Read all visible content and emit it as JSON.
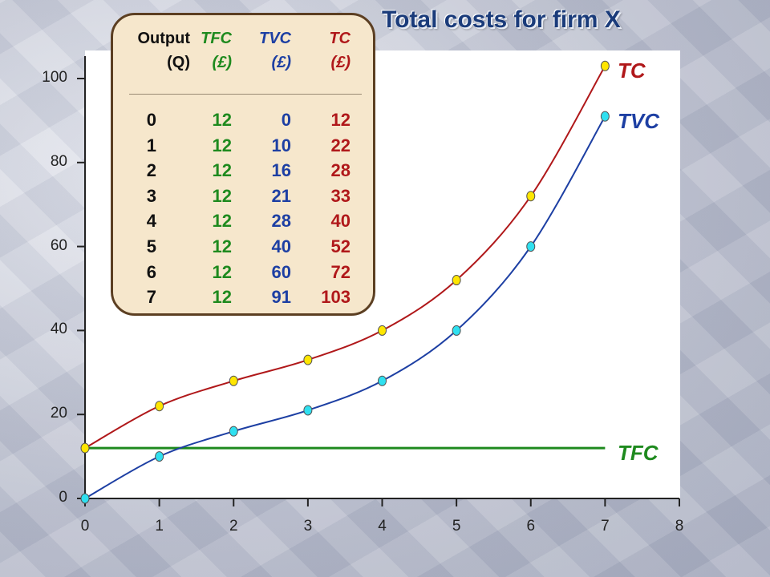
{
  "title": "Total costs for firm X",
  "colors": {
    "tc": "#b0181a",
    "tvc": "#1d3fa3",
    "tfc": "#1e8a1e",
    "tc_marker": "#ffe600",
    "tvc_marker": "#2fe0f0"
  },
  "table": {
    "headers": [
      {
        "line1": "Output",
        "line2": "(Q)"
      },
      {
        "line1": "TFC",
        "line2": "(£)"
      },
      {
        "line1": "TVC",
        "line2": "(£)"
      },
      {
        "line1": "TC",
        "line2": "(£)"
      }
    ],
    "rows": [
      [
        "0",
        "12",
        "0",
        "12"
      ],
      [
        "1",
        "12",
        "10",
        "22"
      ],
      [
        "2",
        "12",
        "16",
        "28"
      ],
      [
        "3",
        "12",
        "21",
        "33"
      ],
      [
        "4",
        "12",
        "28",
        "40"
      ],
      [
        "5",
        "12",
        "40",
        "52"
      ],
      [
        "6",
        "12",
        "60",
        "72"
      ],
      [
        "7",
        "12",
        "91",
        "103"
      ]
    ]
  },
  "chart_data": {
    "type": "line",
    "x": [
      0,
      1,
      2,
      3,
      4,
      5,
      6,
      7
    ],
    "series": [
      {
        "name": "TC",
        "values": [
          12,
          22,
          28,
          33,
          40,
          52,
          72,
          103
        ]
      },
      {
        "name": "TVC",
        "values": [
          0,
          10,
          16,
          21,
          28,
          40,
          60,
          91
        ]
      },
      {
        "name": "TFC",
        "values": [
          12,
          12,
          12,
          12,
          12,
          12,
          12,
          12
        ]
      }
    ],
    "xlim": [
      0,
      8
    ],
    "ylim": [
      0,
      100
    ],
    "xticks": [
      "0",
      "1",
      "2",
      "3",
      "4",
      "5",
      "6",
      "7",
      "8"
    ],
    "yticks": [
      "0",
      "20",
      "40",
      "60",
      "80",
      "100"
    ],
    "grid": false
  }
}
